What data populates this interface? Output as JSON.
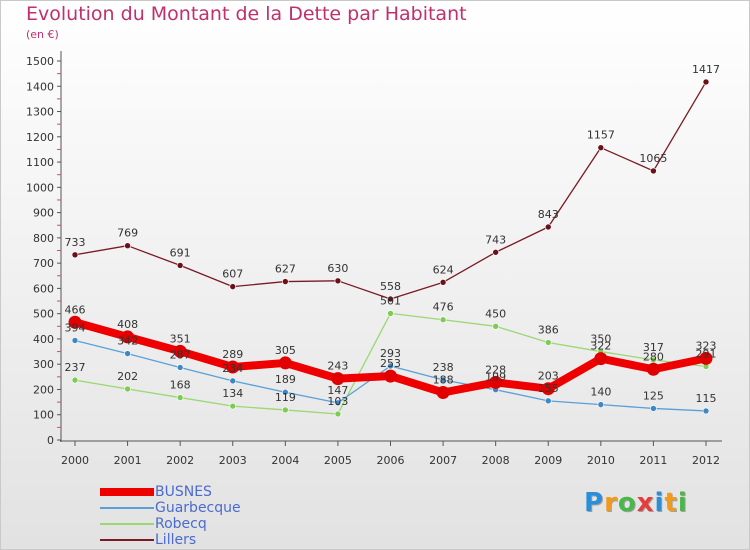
{
  "title": "Evolution du Montant de la Dette par Habitant",
  "subtitle": "(en €)",
  "logo": {
    "text": "Proxiti",
    "letters": [
      {
        "ch": "P",
        "color": "#2a8fd8"
      },
      {
        "ch": "r",
        "color": "#f29a1a"
      },
      {
        "ch": "o",
        "color": "#48b848"
      },
      {
        "ch": "x",
        "color": "#e83c3c"
      },
      {
        "ch": "i",
        "color": "#2a8fd8"
      },
      {
        "ch": "t",
        "color": "#f29a1a"
      },
      {
        "ch": "i",
        "color": "#48b848"
      }
    ]
  },
  "chart_data": {
    "type": "line",
    "title": "Evolution du Montant de la Dette par Habitant",
    "subtitle": "(en €)",
    "x": [
      "2000",
      "2001",
      "2002",
      "2003",
      "2004",
      "2005",
      "2006",
      "2007",
      "2008",
      "2009",
      "2010",
      "2011",
      "2012"
    ],
    "ylim": [
      0,
      1500
    ],
    "yticks": [
      0,
      100,
      200,
      300,
      400,
      500,
      600,
      700,
      800,
      900,
      1000,
      1100,
      1200,
      1300,
      1400,
      1500
    ],
    "grid": false,
    "legend": "bottom-left",
    "series": [
      {
        "name": "Lillers",
        "color": "#7a1a24",
        "values": [
          733,
          769,
          691,
          607,
          627,
          630,
          558,
          624,
          743,
          843,
          1157,
          1065,
          1417
        ]
      },
      {
        "name": "Robecq",
        "color": "#9ad873",
        "values": [
          237,
          202,
          168,
          134,
          119,
          103,
          501,
          476,
          450,
          386,
          350,
          317,
          291
        ]
      },
      {
        "name": "Guarbecque",
        "color": "#5aa0d8",
        "values": [
          394,
          342,
          287,
          234,
          189,
          147,
          293,
          238,
          199,
          155,
          140,
          125,
          115
        ]
      },
      {
        "name": "BUSNES",
        "color": "#ee0000",
        "values": [
          466,
          408,
          351,
          289,
          305,
          243,
          253,
          188,
          228,
          203,
          322,
          280,
          323
        ]
      }
    ],
    "legend_order": [
      "BUSNES",
      "Guarbecque",
      "Robecq",
      "Lillers"
    ]
  }
}
